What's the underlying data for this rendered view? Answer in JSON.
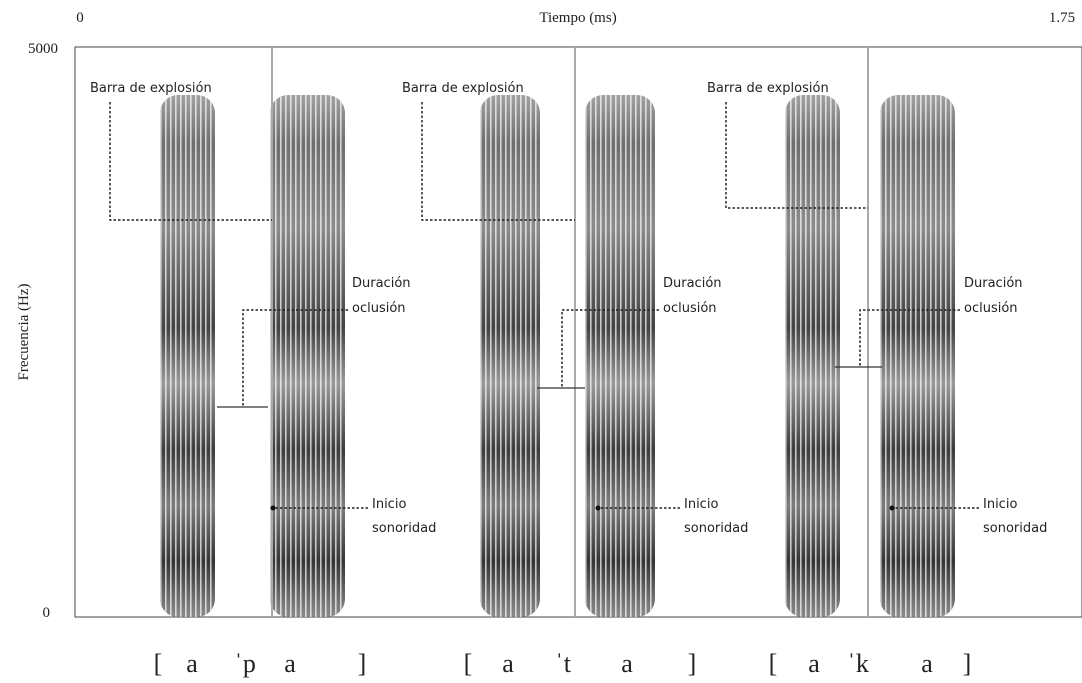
{
  "axes": {
    "x_label": "Tiempo (ms)",
    "x_start": "0",
    "x_end": "1.75",
    "y_label": "Frecuencia (Hz)",
    "y_top": "5000",
    "y_bottom": "0"
  },
  "panels": [
    {
      "burst": "Barra de explosión",
      "closure": [
        "Duración",
        "oclusión"
      ],
      "voicing": [
        "Inicio",
        "sonoridad"
      ],
      "transcription": [
        "[",
        "a",
        "ˈp",
        "a",
        "]"
      ]
    },
    {
      "burst": "Barra de explosión",
      "closure": [
        "Duración",
        "oclusión"
      ],
      "voicing": [
        "Inicio",
        "sonoridad"
      ],
      "transcription": [
        "[",
        "a",
        "ˈt",
        "a",
        "]"
      ]
    },
    {
      "burst": "Barra de explosión",
      "closure": [
        "Duración",
        "oclusión"
      ],
      "voicing": [
        "Inicio",
        "sonoridad"
      ],
      "transcription": [
        "[",
        "a",
        "ˈk",
        "a",
        "]"
      ]
    }
  ]
}
